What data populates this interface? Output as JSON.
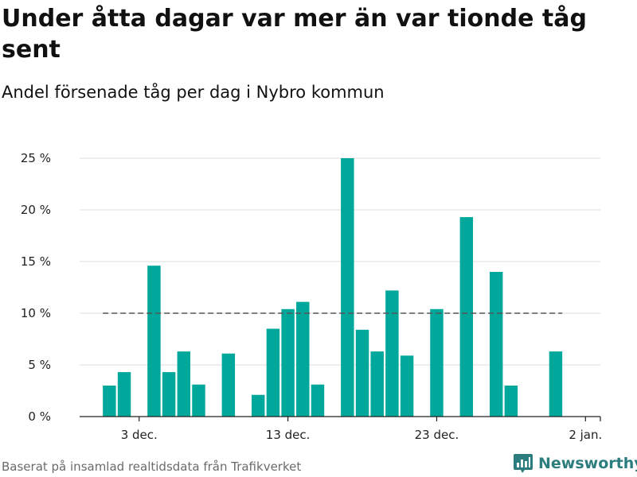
{
  "title": "Under åtta dagar var mer än var tionde tåg sent",
  "subtitle": "Andel försenade tåg per dag i Nybro kommun",
  "source": "Baserat på insamlad realtidsdata från Trafikverket",
  "brand": {
    "name": "Newsworthy",
    "icon": "newsworthy-logo-icon"
  },
  "colors": {
    "bar": "#00a79b",
    "threshold": "#555555",
    "grid": "#dddddd",
    "brand": "#2c7d7d"
  },
  "chart_data": {
    "type": "bar",
    "title": "Under åtta dagar var mer än var tionde tåg sent",
    "subtitle": "Andel försenade tåg per dag i Nybro kommun",
    "x_domain": [
      "2023-11-29",
      "2024-01-03"
    ],
    "x": [
      "2023-12-01",
      "2023-12-02",
      "2023-12-03",
      "2023-12-04",
      "2023-12-05",
      "2023-12-06",
      "2023-12-07",
      "2023-12-08",
      "2023-12-09",
      "2023-12-10",
      "2023-12-11",
      "2023-12-12",
      "2023-12-13",
      "2023-12-14",
      "2023-12-15",
      "2023-12-16",
      "2023-12-17",
      "2023-12-18",
      "2023-12-19",
      "2023-12-20",
      "2023-12-21",
      "2023-12-22",
      "2023-12-23",
      "2023-12-24",
      "2023-12-25",
      "2023-12-26",
      "2023-12-27",
      "2023-12-28",
      "2023-12-29",
      "2023-12-30",
      "2023-12-31"
    ],
    "values": [
      3.0,
      4.3,
      0,
      14.6,
      4.3,
      6.3,
      3.1,
      0,
      6.1,
      0,
      2.1,
      8.5,
      10.4,
      11.1,
      3.1,
      0,
      25.0,
      8.4,
      6.3,
      12.2,
      5.9,
      0,
      10.4,
      0,
      19.3,
      0,
      14.0,
      3.0,
      0,
      0,
      6.3
    ],
    "ylim": [
      0,
      25
    ],
    "yticks": [
      0,
      5,
      10,
      15,
      20,
      25
    ],
    "ytick_labels": [
      "0 %",
      "5 %",
      "10 %",
      "15 %",
      "20 %",
      "25 %"
    ],
    "xticks": [
      "2023-12-03",
      "2023-12-13",
      "2023-12-23",
      "2024-01-02"
    ],
    "xtick_labels": [
      "3 dec.",
      "13 dec.",
      "23 dec.",
      "2 jan."
    ],
    "reference_line": {
      "value": 10,
      "style": "dashed"
    },
    "grid": true,
    "xlabel": "",
    "ylabel": ""
  }
}
